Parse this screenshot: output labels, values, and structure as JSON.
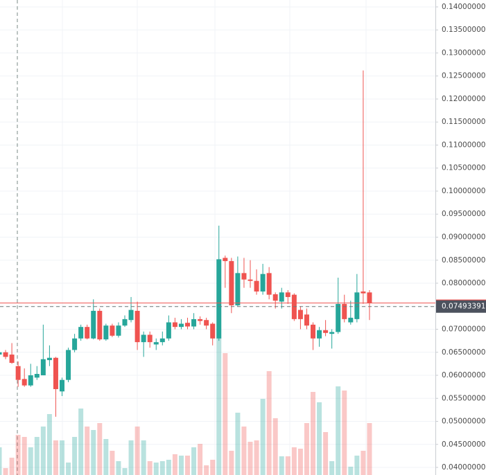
{
  "chart_data": {
    "type": "candlestick",
    "up_color": "#26a69a",
    "down_color": "#ef5350",
    "grid": true,
    "ylim": [
      0.03835,
      0.1415
    ],
    "yticks": [
      {
        "value": 0.04,
        "label": "0.04000000"
      },
      {
        "value": 0.045,
        "label": "0.04500000"
      },
      {
        "value": 0.05,
        "label": "0.05000000"
      },
      {
        "value": 0.055,
        "label": "0.05500000"
      },
      {
        "value": 0.06,
        "label": "0.06000000"
      },
      {
        "value": 0.065,
        "label": "0.06500000"
      },
      {
        "value": 0.07,
        "label": "0.07000000"
      },
      {
        "value": 0.075,
        "label": "0.07500000"
      },
      {
        "value": 0.08,
        "label": "0.08000000"
      },
      {
        "value": 0.085,
        "label": "0.08500000"
      },
      {
        "value": 0.09,
        "label": "0.09000000"
      },
      {
        "value": 0.095,
        "label": "0.09500000"
      },
      {
        "value": 0.1,
        "label": "0.10000000"
      },
      {
        "value": 0.105,
        "label": "0.10500000"
      },
      {
        "value": 0.11,
        "label": "0.11000000"
      },
      {
        "value": 0.115,
        "label": "0.11500000"
      },
      {
        "value": 0.12,
        "label": "0.12000000"
      },
      {
        "value": 0.125,
        "label": "0.12500000"
      },
      {
        "value": 0.13,
        "label": "0.13000000"
      },
      {
        "value": 0.135,
        "label": "0.13500000"
      },
      {
        "value": 0.14,
        "label": "0.14000000"
      }
    ],
    "crosshair": 0.07493391,
    "open": [
      0.0645,
      0.065,
      0.0645,
      0.062,
      0.0592,
      0.0578,
      0.0595,
      0.06,
      0.0633,
      0.0638,
      0.0565,
      0.059,
      0.0655,
      0.068,
      0.0705,
      0.068,
      0.074,
      0.0678,
      0.0708,
      0.0686,
      0.0708,
      0.072,
      0.074,
      0.0672,
      0.0688,
      0.0667,
      0.0672,
      0.068,
      0.0715,
      0.0705,
      0.0714,
      0.0706,
      0.0722,
      0.072,
      0.0712,
      0.068,
      0.0855,
      0.0848,
      0.0752,
      0.0822,
      0.0808,
      0.0805,
      0.0782,
      0.0822,
      0.0776,
      0.076,
      0.078,
      0.0775,
      0.0742,
      0.0732,
      0.071,
      0.068,
      0.0698,
      0.069,
      0.0694,
      0.0755,
      0.0715,
      0.0722,
      0.0782,
      0.078
    ],
    "high": [
      0.0655,
      0.0655,
      0.067,
      0.063,
      0.0615,
      0.0625,
      0.062,
      0.071,
      0.0665,
      0.064,
      0.0595,
      0.066,
      0.069,
      0.071,
      0.071,
      0.0765,
      0.0745,
      0.0712,
      0.0712,
      0.0715,
      0.073,
      0.077,
      0.076,
      0.0695,
      0.0695,
      0.068,
      0.0695,
      0.073,
      0.0725,
      0.0722,
      0.0725,
      0.0735,
      0.0728,
      0.0725,
      0.0715,
      0.0925,
      0.086,
      0.0855,
      0.0858,
      0.0855,
      0.085,
      0.083,
      0.0842,
      0.0835,
      0.078,
      0.079,
      0.0785,
      0.0778,
      0.075,
      0.0745,
      0.0715,
      0.0705,
      0.072,
      0.07,
      0.0812,
      0.0775,
      0.0762,
      0.082,
      0.1262,
      0.0785
    ],
    "low": [
      0.064,
      0.0635,
      0.0625,
      0.0575,
      0.0575,
      0.0575,
      0.059,
      0.06,
      0.062,
      0.051,
      0.0555,
      0.0585,
      0.065,
      0.0675,
      0.0678,
      0.0678,
      0.0675,
      0.0675,
      0.0683,
      0.0682,
      0.0705,
      0.0715,
      0.0655,
      0.064,
      0.066,
      0.0655,
      0.0665,
      0.0675,
      0.07,
      0.07,
      0.07,
      0.07,
      0.071,
      0.07,
      0.0665,
      0.0675,
      0.079,
      0.0735,
      0.075,
      0.079,
      0.079,
      0.0775,
      0.0775,
      0.0765,
      0.0745,
      0.0745,
      0.0755,
      0.0718,
      0.07,
      0.07,
      0.0655,
      0.0662,
      0.0685,
      0.0658,
      0.069,
      0.0715,
      0.071,
      0.0715,
      0.0755,
      0.072
    ],
    "close": [
      0.065,
      0.064,
      0.0627,
      0.059,
      0.0578,
      0.06,
      0.0603,
      0.0635,
      0.0638,
      0.057,
      0.059,
      0.0655,
      0.068,
      0.0705,
      0.068,
      0.074,
      0.0678,
      0.0708,
      0.0686,
      0.0708,
      0.0722,
      0.0742,
      0.0672,
      0.0688,
      0.0672,
      0.0672,
      0.068,
      0.0715,
      0.0705,
      0.0712,
      0.0706,
      0.0722,
      0.0718,
      0.0708,
      0.068,
      0.0852,
      0.0848,
      0.0752,
      0.0822,
      0.0808,
      0.0805,
      0.0782,
      0.082,
      0.0775,
      0.0762,
      0.078,
      0.077,
      0.0722,
      0.0722,
      0.0708,
      0.068,
      0.0698,
      0.0692,
      0.0694,
      0.0755,
      0.0722,
      0.0725,
      0.078,
      0.0778,
      0.0757
    ],
    "vlim": [
      0,
      230
    ],
    "volume": [
      40,
      10,
      25,
      58,
      55,
      40,
      55,
      70,
      88,
      50,
      50,
      18,
      55,
      96,
      70,
      65,
      75,
      52,
      35,
      20,
      10,
      50,
      70,
      50,
      20,
      18,
      20,
      22,
      30,
      28,
      28,
      40,
      45,
      14,
      22,
      198,
      176,
      35,
      90,
      70,
      48,
      50,
      110,
      150,
      82,
      27,
      27,
      40,
      38,
      75,
      120,
      105,
      62,
      20,
      128,
      122,
      12,
      28,
      35,
      75
    ]
  }
}
